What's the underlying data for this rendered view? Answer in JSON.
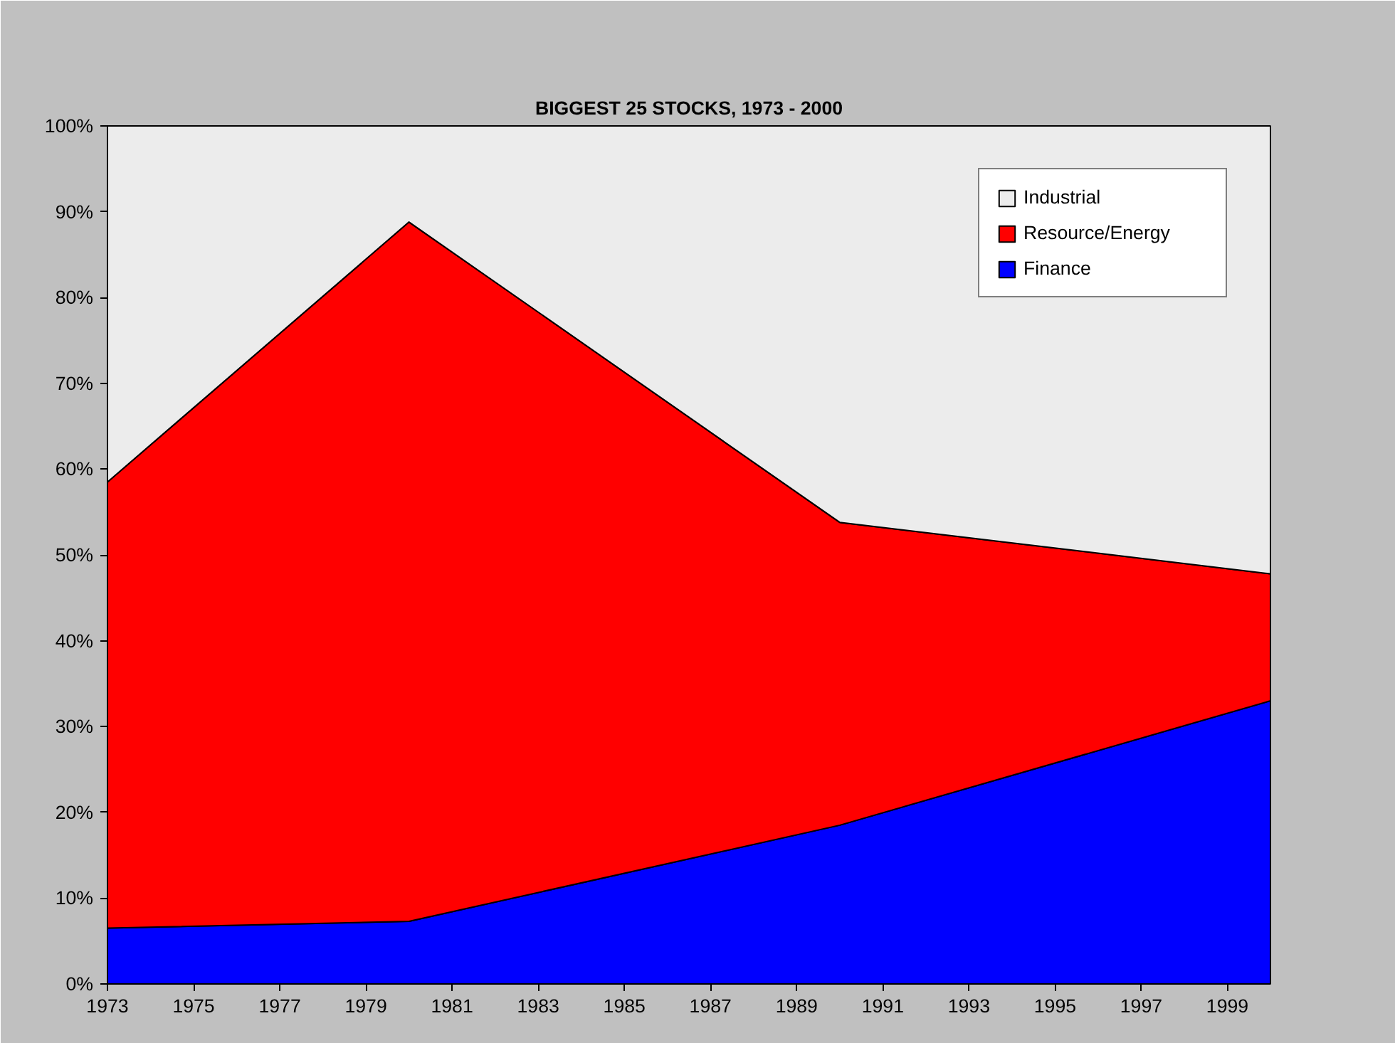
{
  "chart_data": {
    "type": "area",
    "stacked": true,
    "title": "BIGGEST 25 STOCKS, 1973 - 2000",
    "x": [
      1973,
      1980,
      1990,
      2000
    ],
    "series": [
      {
        "name": "Finance",
        "color": "#0000ff",
        "values": [
          6.5,
          7.3,
          18.5,
          33.0
        ]
      },
      {
        "name": "Resource/Energy",
        "color": "#ff0000",
        "values": [
          52.0,
          81.5,
          35.3,
          14.8
        ]
      },
      {
        "name": "Industrial",
        "color": "#ececec",
        "values": [
          41.5,
          11.2,
          46.2,
          52.2
        ]
      }
    ],
    "xlim": [
      1973,
      2000
    ],
    "xticks": [
      1973,
      1975,
      1977,
      1979,
      1981,
      1983,
      1985,
      1987,
      1989,
      1991,
      1993,
      1995,
      1997,
      1999
    ],
    "ylim": [
      0,
      100
    ],
    "yticks": [
      {
        "value": 0,
        "label": "0%"
      },
      {
        "value": 10,
        "label": "10%"
      },
      {
        "value": 20,
        "label": "20%"
      },
      {
        "value": 30,
        "label": "30%"
      },
      {
        "value": 40,
        "label": "40%"
      },
      {
        "value": 50,
        "label": "50%"
      },
      {
        "value": 60,
        "label": "60%"
      },
      {
        "value": 70,
        "label": "70%"
      },
      {
        "value": 80,
        "label": "80%"
      },
      {
        "value": 90,
        "label": "90%"
      },
      {
        "value": 100,
        "label": "100%"
      }
    ],
    "legend": "top right"
  }
}
